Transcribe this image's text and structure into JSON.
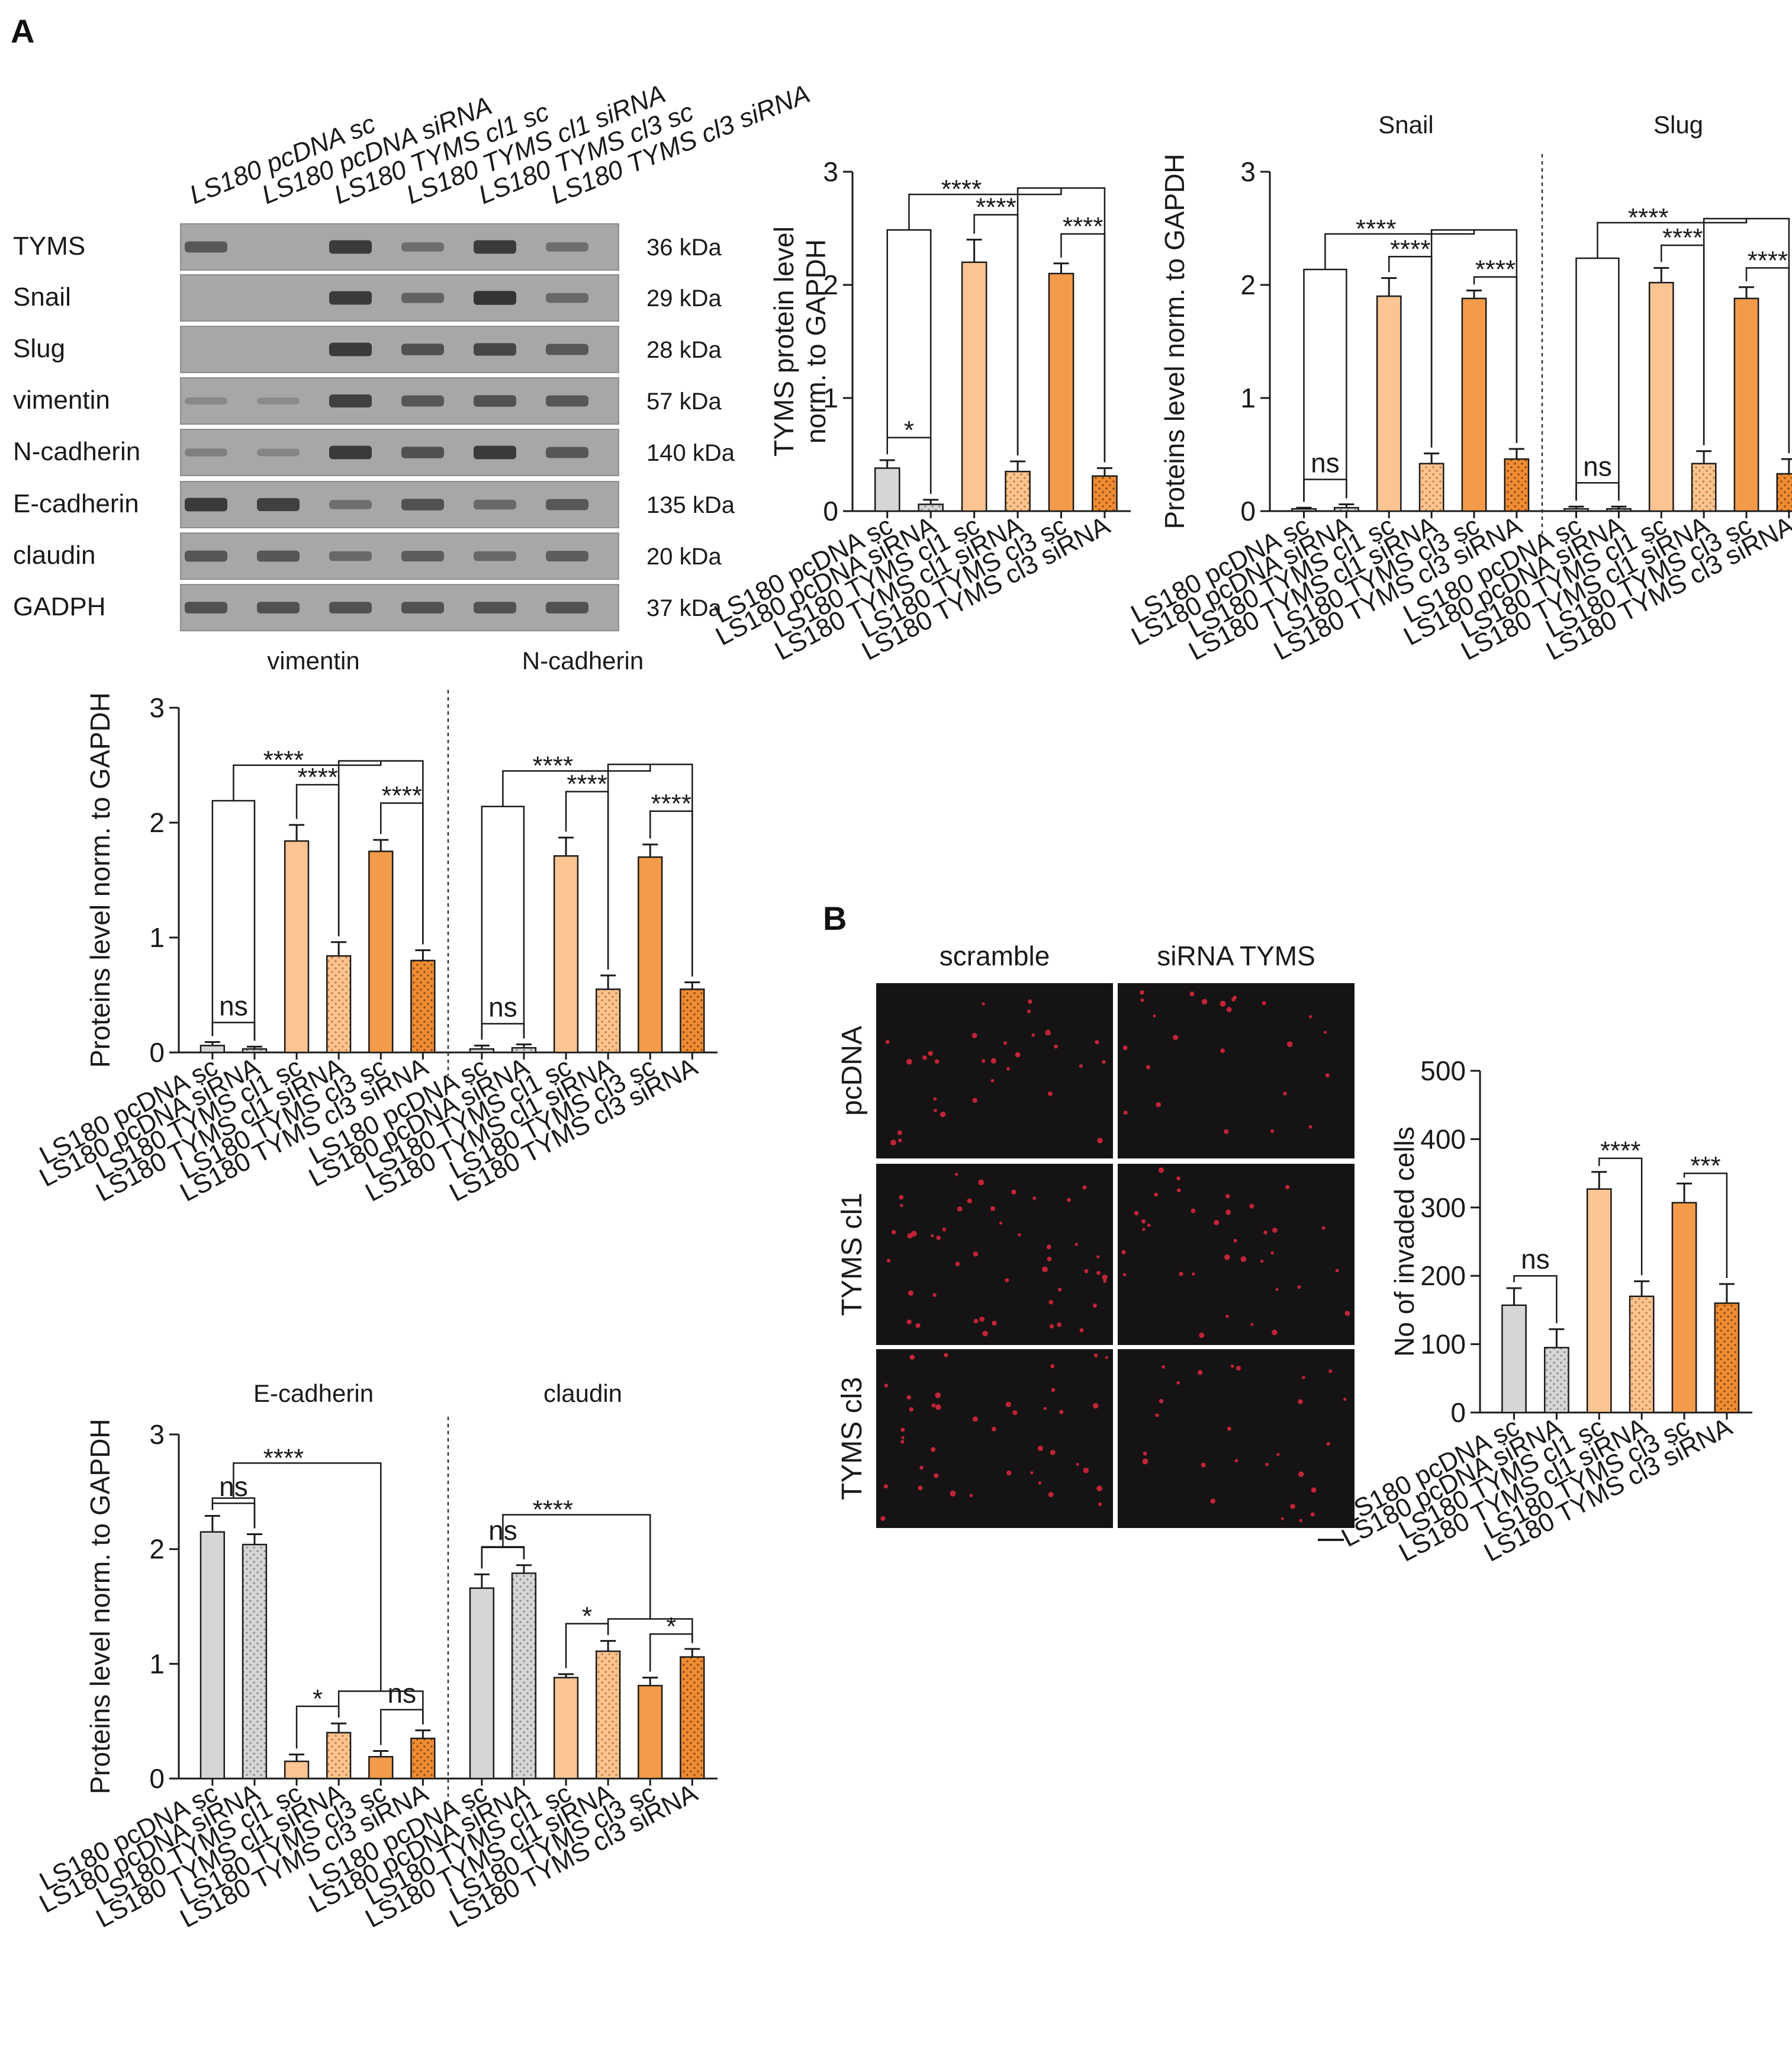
{
  "panels": {
    "a": "A",
    "b": "B"
  },
  "colors": {
    "grey": "#d6d6d4",
    "light_orange": "#fbc492",
    "orange": "#f39b4a",
    "dark_orange": "#ef8c33",
    "axis": "#1a1a1a",
    "micro_bg": "#161314",
    "micro_cell": "#e0283c"
  },
  "conditions": [
    "LS180 pcDNA sc",
    "LS180 pcDNA siRNA",
    "LS180 TYMS cl1 sc",
    "LS180 TYMS cl1 siRNA",
    "LS180 TYMS cl3 sc",
    "LS180 TYMS cl3 siRNA"
  ],
  "western_blot": {
    "rows": [
      {
        "label": "TYMS",
        "kda": "36 kDa",
        "intensity": [
          0.55,
          0.0,
          0.8,
          0.35,
          0.8,
          0.35
        ]
      },
      {
        "label": "Snail",
        "kda": "29 kDa",
        "intensity": [
          0.0,
          0.0,
          0.8,
          0.45,
          0.85,
          0.4
        ]
      },
      {
        "label": "Slug",
        "kda": "28 kDa",
        "intensity": [
          0.0,
          0.0,
          0.8,
          0.6,
          0.7,
          0.55
        ]
      },
      {
        "label": "vimentin",
        "kda": "57 kDa",
        "intensity": [
          0.12,
          0.1,
          0.75,
          0.55,
          0.6,
          0.55
        ]
      },
      {
        "label": "N-cadherin",
        "kda": "140 kDa",
        "intensity": [
          0.2,
          0.15,
          0.8,
          0.6,
          0.8,
          0.55
        ]
      },
      {
        "label": "E-cadherin",
        "kda": "135 kDa",
        "intensity": [
          0.8,
          0.75,
          0.35,
          0.6,
          0.4,
          0.55
        ]
      },
      {
        "label": "claudin",
        "kda": "20 kDa",
        "intensity": [
          0.55,
          0.55,
          0.4,
          0.5,
          0.4,
          0.5
        ]
      },
      {
        "label": "GADPH",
        "kda": "37 kDa",
        "intensity": [
          0.6,
          0.6,
          0.6,
          0.6,
          0.6,
          0.6
        ]
      }
    ]
  },
  "chart_data": [
    {
      "id": "tyms",
      "type": "bar",
      "ylabel": "TYMS protein level norm. to GAPDH",
      "ylim": [
        0,
        3
      ],
      "yticks": [
        "0",
        "1",
        "2",
        "3"
      ],
      "categories": [
        "LS180 pcDNA sc",
        "LS180 pcDNA siRNA",
        "LS180 TYMS cl1 sc",
        "LS180 TYMS cl1 siRNA",
        "LS180 TYMS cl3 sc",
        "LS180 TYMS cl3 siRNA"
      ],
      "groups": [
        {
          "title": "",
          "values": [
            0.38,
            0.06,
            2.2,
            0.35,
            2.1,
            0.31
          ],
          "errors": [
            0.07,
            0.04,
            0.2,
            0.09,
            0.09,
            0.07
          ],
          "sig": [
            {
              "label": "*",
              "type": "pair",
              "a": 0,
              "b": 1,
              "level": 0.65
            },
            {
              "label": "****",
              "type": "combo",
              "a": 0,
              "b": 1,
              "c": 3,
              "d": 5,
              "level1": 2.8,
              "level2": 2.95
            },
            {
              "label": "****",
              "type": "pair",
              "a": 2,
              "b": 3,
              "level": 2.62
            },
            {
              "label": "****",
              "type": "pair",
              "a": 4,
              "b": 5,
              "level": 2.45
            }
          ]
        }
      ]
    },
    {
      "id": "snail-slug",
      "type": "bar",
      "ylabel": "Proteins level norm. to GAPDH",
      "ylim": [
        0,
        3
      ],
      "yticks": [
        "0",
        "1",
        "2",
        "3"
      ],
      "categories": [
        "LS180 pcDNA sc",
        "LS180 pcDNA siRNA",
        "LS180 TYMS cl1 sc",
        "LS180 TYMS cl1 siRNA",
        "LS180 TYMS cl3 sc",
        "LS180 TYMS cl3 siRNA"
      ],
      "groups": [
        {
          "title": "Snail",
          "values": [
            0.02,
            0.03,
            1.9,
            0.42,
            1.88,
            0.46
          ],
          "errors": [
            0.01,
            0.03,
            0.16,
            0.09,
            0.07,
            0.09
          ],
          "sig": [
            {
              "label": "ns",
              "type": "pair",
              "a": 0,
              "b": 1,
              "level": 0.28
            },
            {
              "label": "****",
              "type": "combo",
              "a": 0,
              "b": 1,
              "c": 3,
              "d": 5,
              "level1": 2.45,
              "level2": 2.58
            },
            {
              "label": "****",
              "type": "pair",
              "a": 2,
              "b": 3,
              "level": 2.25
            },
            {
              "label": "****",
              "type": "pair",
              "a": 4,
              "b": 5,
              "level": 2.07
            }
          ]
        },
        {
          "title": "Slug",
          "values": [
            0.02,
            0.02,
            2.02,
            0.42,
            1.88,
            0.33
          ],
          "errors": [
            0.02,
            0.02,
            0.13,
            0.11,
            0.1,
            0.13
          ],
          "sig": [
            {
              "label": "ns",
              "type": "pair",
              "a": 0,
              "b": 1,
              "level": 0.25
            },
            {
              "label": "****",
              "type": "combo",
              "a": 0,
              "b": 1,
              "c": 3,
              "d": 5,
              "level1": 2.55,
              "level2": 2.68
            },
            {
              "label": "****",
              "type": "pair",
              "a": 2,
              "b": 3,
              "level": 2.35
            },
            {
              "label": "****",
              "type": "pair",
              "a": 4,
              "b": 5,
              "level": 2.15
            }
          ]
        }
      ]
    },
    {
      "id": "vimentin-ncadherin",
      "type": "bar",
      "ylabel": "Proteins level norm. to GAPDH",
      "ylim": [
        0,
        3
      ],
      "yticks": [
        "0",
        "1",
        "2",
        "3"
      ],
      "categories": [
        "LS180 pcDNA sc",
        "LS180 pcDNA siRNA",
        "LS180 TYMS cl1 sc",
        "LS180 TYMS cl1 siRNA",
        "LS180 TYMS cl3 sc",
        "LS180 TYMS cl3 siRNA"
      ],
      "groups": [
        {
          "title": "vimentin",
          "values": [
            0.06,
            0.03,
            1.84,
            0.84,
            1.75,
            0.8
          ],
          "errors": [
            0.03,
            0.02,
            0.14,
            0.12,
            0.1,
            0.09
          ],
          "sig": [
            {
              "label": "ns",
              "type": "pair",
              "a": 0,
              "b": 1,
              "level": 0.26
            },
            {
              "label": "****",
              "type": "combo",
              "a": 0,
              "b": 1,
              "c": 3,
              "d": 5,
              "level1": 2.5,
              "level2": 2.63
            },
            {
              "label": "****",
              "type": "pair",
              "a": 2,
              "b": 3,
              "level": 2.33
            },
            {
              "label": "****",
              "type": "pair",
              "a": 4,
              "b": 5,
              "level": 2.17
            }
          ]
        },
        {
          "title": "N-cadherin",
          "values": [
            0.03,
            0.04,
            1.71,
            0.55,
            1.7,
            0.55
          ],
          "errors": [
            0.03,
            0.03,
            0.16,
            0.12,
            0.11,
            0.06
          ],
          "sig": [
            {
              "label": "ns",
              "type": "pair",
              "a": 0,
              "b": 1,
              "level": 0.25
            },
            {
              "label": "****",
              "type": "combo",
              "a": 0,
              "b": 1,
              "c": 3,
              "d": 5,
              "level1": 2.45,
              "level2": 2.6
            },
            {
              "label": "****",
              "type": "pair",
              "a": 2,
              "b": 3,
              "level": 2.27
            },
            {
              "label": "****",
              "type": "pair",
              "a": 4,
              "b": 5,
              "level": 2.1
            }
          ]
        }
      ]
    },
    {
      "id": "ecadherin-claudin",
      "type": "bar",
      "ylabel": "Proteins level norm. to GAPDH",
      "ylim": [
        0,
        3
      ],
      "yticks": [
        "0",
        "1",
        "2",
        "3"
      ],
      "categories": [
        "LS180 pcDNA sc",
        "LS180 pcDNA siRNA",
        "LS180 TYMS cl1 sc",
        "LS180 TYMS cl1 siRNA",
        "LS180 TYMS cl3 sc",
        "LS180 TYMS cl3 siRNA"
      ],
      "groups": [
        {
          "title": "E-cadherin",
          "values": [
            2.15,
            2.04,
            0.15,
            0.4,
            0.19,
            0.35
          ],
          "errors": [
            0.14,
            0.09,
            0.06,
            0.08,
            0.05,
            0.07
          ],
          "sig": [
            {
              "label": "ns",
              "type": "pair",
              "a": 0,
              "b": 1,
              "level": 2.4
            },
            {
              "label": "****",
              "type": "combo",
              "a": 0,
              "b": 1,
              "c": 3,
              "d": 5,
              "level1": 2.75,
              "level2": 1.02
            },
            {
              "label": "*",
              "type": "pair",
              "a": 2,
              "b": 3,
              "level": 0.63
            },
            {
              "label": "ns",
              "type": "pair",
              "a": 4,
              "b": 5,
              "level": 0.6
            }
          ]
        },
        {
          "title": "claudin",
          "values": [
            1.66,
            1.79,
            0.88,
            1.11,
            0.81,
            1.06
          ],
          "errors": [
            0.12,
            0.07,
            0.03,
            0.09,
            0.07,
            0.07
          ],
          "sig": [
            {
              "label": "ns",
              "type": "pair",
              "a": 0,
              "b": 1,
              "level": 2.02
            },
            {
              "label": "****",
              "type": "combo",
              "a": 0,
              "b": 1,
              "c": 3,
              "d": 5,
              "level1": 2.3,
              "level2": 1.65
            },
            {
              "label": "*",
              "type": "pair",
              "a": 2,
              "b": 3,
              "level": 1.35
            },
            {
              "label": "*",
              "type": "pair",
              "a": 4,
              "b": 5,
              "level": 1.26
            }
          ]
        }
      ]
    },
    {
      "id": "invasion",
      "type": "bar",
      "ylabel": "No of invaded cells",
      "ylim": [
        0,
        500
      ],
      "yticks": [
        "0",
        "100",
        "200",
        "300",
        "400",
        "500"
      ],
      "categories": [
        "LS180 pcDNA sc",
        "LS180 pcDNA siRNA",
        "LS180 TYMS cl1 sc",
        "LS180 TYMS cl1 siRNA",
        "LS180 TYMS cl3 sc",
        "LS180 TYMS cl3 siRNA"
      ],
      "groups": [
        {
          "title": "",
          "values": [
            157,
            95,
            327,
            170,
            307,
            160
          ],
          "errors": [
            25,
            27,
            25,
            22,
            28,
            28
          ],
          "sig": [
            {
              "label": "ns",
              "type": "pair",
              "a": 0,
              "b": 1,
              "level": 200
            },
            {
              "label": "****",
              "type": "pair",
              "a": 2,
              "b": 3,
              "level": 372
            },
            {
              "label": "***",
              "type": "pair",
              "a": 4,
              "b": 5,
              "level": 350
            }
          ]
        }
      ]
    }
  ],
  "microscopy": {
    "col_labels": [
      "scramble",
      "siRNA TYMS"
    ],
    "row_labels": [
      "pcDNA",
      "TYMS cl1",
      "TYMS cl3"
    ],
    "cell_counts": [
      [
        30,
        24
      ],
      [
        46,
        34
      ],
      [
        40,
        26
      ]
    ]
  }
}
